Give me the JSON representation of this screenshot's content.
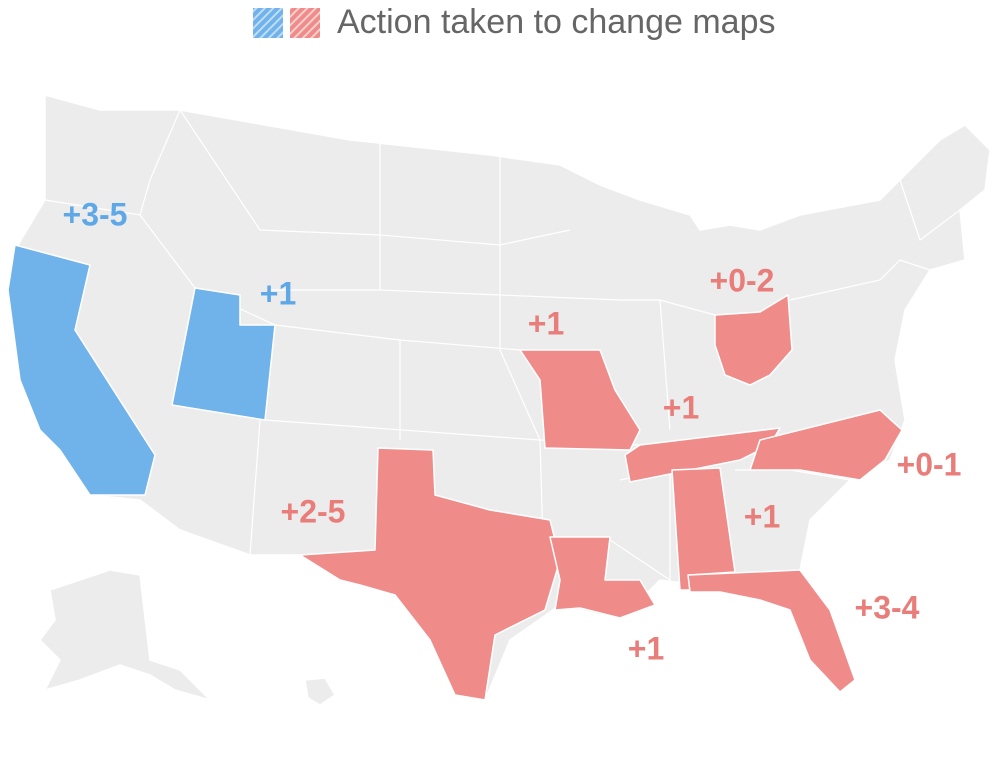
{
  "legend": {
    "label": "Action taken to change maps",
    "colors": [
      "#70b2ea",
      "#ef8c8a"
    ]
  },
  "annotations": [
    {
      "text": "+3-5",
      "color": "#5fa8e8"
    },
    {
      "text": "+1",
      "color": "#5fa8e8"
    },
    {
      "text": "+0-2",
      "color": "#e97d7a"
    },
    {
      "text": "+1",
      "color": "#e97d7a"
    },
    {
      "text": "+1",
      "color": "#e97d7a"
    },
    {
      "text": "+0-1",
      "color": "#e97d7a"
    },
    {
      "text": "+2-5",
      "color": "#e97d7a"
    },
    {
      "text": "+1",
      "color": "#e97d7a"
    },
    {
      "text": "+3-4",
      "color": "#e97d7a"
    },
    {
      "text": "+1",
      "color": "#e97d7a"
    }
  ]
}
